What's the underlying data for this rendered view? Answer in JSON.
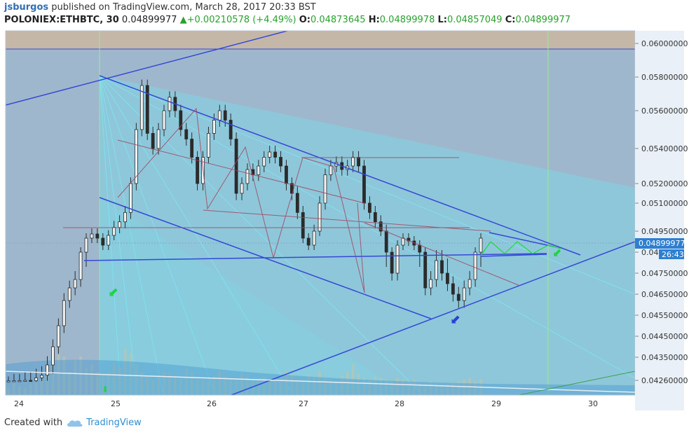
{
  "header": {
    "user": "jsburgos",
    "published_text": "published on TradingView.com, March 28, 2017 20:33 BST",
    "symbol": "POLONIEX:ETHBTC, 30",
    "price": "0.04899977",
    "change": "+0.00210578 (+4.49%)",
    "o_label": "O:",
    "o_val": "0.04873645",
    "h_label": "H:",
    "h_val": "0.04899978",
    "l_label": "L:",
    "l_val": "0.04857049",
    "c_label": "C:",
    "c_val": "0.04899977"
  },
  "footer": {
    "created": "Created with",
    "brand": "TradingView"
  },
  "chart_data": {
    "type": "candlestick",
    "x_ticks": [
      "24",
      "25",
      "26",
      "27",
      "28",
      "29",
      "30"
    ],
    "y_ticks": [
      "0.06000000",
      "0.05800000",
      "0.05600000",
      "0.05400000",
      "0.05200000",
      "0.05100000",
      "0.04950000",
      "0.048",
      "0.04750000",
      "0.04650000",
      "0.04550000",
      "0.04450000",
      "0.04350000",
      "0.04260000"
    ],
    "last_price_label": "0.04899977",
    "countdown_label": "26:43",
    "colors": {
      "up": "#2b2b2b",
      "down": "#2b2b2b",
      "price_tag": "#2f7fd0",
      "background": "#9fb7cc",
      "top_band": "#c5b7a8",
      "fan": "#7fd6e6",
      "channel": "#3548d6"
    },
    "close_series": [
      0.0424,
      0.0425,
      0.0425,
      0.0426,
      0.0425,
      0.0427,
      0.0428,
      0.0432,
      0.044,
      0.045,
      0.0462,
      0.0468,
      0.0472,
      0.048,
      0.049,
      0.0493,
      0.049,
      0.0485,
      0.0492,
      0.0497,
      0.05,
      0.0505,
      0.052,
      0.055,
      0.0575,
      0.0548,
      0.054,
      0.055,
      0.056,
      0.0568,
      0.056,
      0.055,
      0.0545,
      0.0535,
      0.052,
      0.0535,
      0.0548,
      0.0555,
      0.056,
      0.0555,
      0.0545,
      0.0515,
      0.052,
      0.0528,
      0.0525,
      0.053,
      0.0535,
      0.0538,
      0.0535,
      0.053,
      0.052,
      0.0515,
      0.0505,
      0.049,
      0.0485,
      0.0495,
      0.051,
      0.0525,
      0.053,
      0.0532,
      0.0528,
      0.053,
      0.0535,
      0.053,
      0.051,
      0.0505,
      0.05,
      0.0495,
      0.048,
      0.0475,
      0.0485,
      0.049,
      0.0488,
      0.0485,
      0.048,
      0.0468,
      0.0472,
      0.0478,
      0.0475,
      0.047,
      0.0465,
      0.0462,
      0.0468,
      0.0472,
      0.048,
      0.049
    ],
    "volume_series": [
      0.1,
      0.15,
      0.12,
      0.1,
      0.14,
      0.16,
      0.2,
      0.35,
      0.4,
      0.55,
      0.5,
      0.3,
      0.45,
      0.5,
      0.35,
      0.4,
      0.3,
      0.28,
      0.3,
      0.42,
      0.35,
      0.6,
      0.55,
      0.4,
      0.3,
      0.25,
      0.2,
      0.25,
      0.3,
      0.28,
      0.25,
      0.22,
      0.35,
      0.3,
      0.22,
      0.2,
      0.18,
      0.24,
      0.3,
      0.25,
      0.2,
      0.22,
      0.28,
      0.24,
      0.18,
      0.22,
      0.25,
      0.2,
      0.18,
      0.24,
      0.3,
      0.28,
      0.22,
      0.2,
      0.26,
      0.24,
      0.3,
      0.22,
      0.2,
      0.18,
      0.25,
      0.3,
      0.4,
      0.28,
      0.22,
      0.2,
      0.24,
      0.22,
      0.2,
      0.18,
      0.22,
      0.2,
      0.18,
      0.2,
      0.16,
      0.14,
      0.18,
      0.16,
      0.15,
      0.14,
      0.16,
      0.18,
      0.2,
      0.22,
      0.18,
      0.2
    ]
  }
}
